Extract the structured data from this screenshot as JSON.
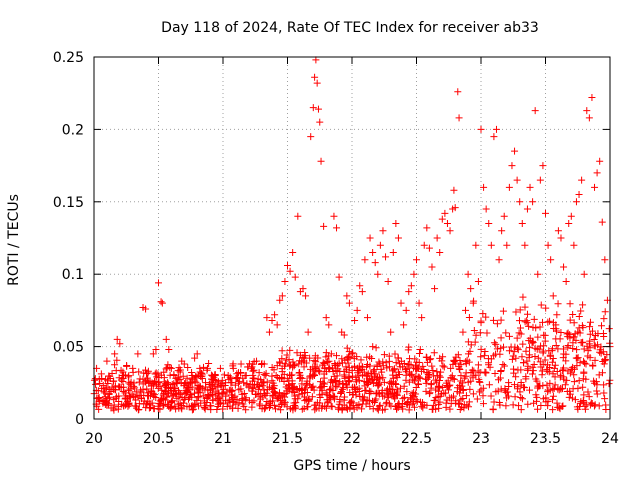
{
  "chart_data": {
    "type": "scatter",
    "title": "Day 118 of 2024, Rate Of TEC Index for receiver ab33",
    "xlabel": "GPS time / hours",
    "ylabel": "ROTI / TECUs",
    "xlim": [
      20,
      24
    ],
    "ylim": [
      0,
      0.25
    ],
    "x_ticks": [
      20,
      20.5,
      21,
      21.5,
      22,
      22.5,
      23,
      23.5,
      24
    ],
    "y_ticks": [
      0,
      0.05,
      0.1,
      0.15,
      0.2,
      0.25
    ],
    "x_tick_labels": [
      "20",
      "20.5",
      "21",
      "21.5",
      "22",
      "22.5",
      "23",
      "23.5",
      "24"
    ],
    "y_tick_labels": [
      "0",
      "0.05",
      "0.1",
      "0.15",
      "0.2",
      "0.25"
    ],
    "grid": true,
    "marker": "+",
    "color": "#ff0000",
    "series": [
      {
        "points": [
          [
            20.02,
            0.035
          ],
          [
            20.04,
            0.012
          ],
          [
            20.06,
            0.028
          ],
          [
            20.08,
            0.018
          ],
          [
            20.1,
            0.04
          ],
          [
            20.12,
            0.015
          ],
          [
            20.14,
            0.022
          ],
          [
            20.16,
            0.045
          ],
          [
            20.18,
            0.055
          ],
          [
            20.2,
            0.052
          ],
          [
            20.22,
            0.03
          ],
          [
            20.24,
            0.018
          ],
          [
            20.26,
            0.012
          ],
          [
            20.28,
            0.024
          ],
          [
            20.3,
            0.035
          ],
          [
            20.32,
            0.015
          ],
          [
            20.34,
            0.045
          ],
          [
            20.36,
            0.02
          ],
          [
            20.38,
            0.077
          ],
          [
            20.4,
            0.076
          ],
          [
            20.42,
            0.018
          ],
          [
            20.44,
            0.025
          ],
          [
            20.46,
            0.045
          ],
          [
            20.48,
            0.048
          ],
          [
            20.5,
            0.094
          ],
          [
            20.52,
            0.081
          ],
          [
            20.53,
            0.08
          ],
          [
            20.56,
            0.055
          ],
          [
            20.58,
            0.048
          ],
          [
            20.6,
            0.035
          ],
          [
            20.62,
            0.03
          ],
          [
            20.64,
            0.025
          ],
          [
            20.66,
            0.018
          ],
          [
            20.68,
            0.04
          ],
          [
            20.7,
            0.038
          ],
          [
            20.72,
            0.022
          ],
          [
            20.74,
            0.015
          ],
          [
            20.76,
            0.03
          ],
          [
            20.78,
            0.042
          ],
          [
            20.8,
            0.045
          ],
          [
            20.82,
            0.035
          ],
          [
            20.84,
            0.028
          ],
          [
            20.86,
            0.02
          ],
          [
            20.88,
            0.035
          ],
          [
            20.9,
            0.025
          ],
          [
            20.92,
            0.018
          ],
          [
            20.94,
            0.03
          ],
          [
            20.96,
            0.022
          ],
          [
            20.98,
            0.035
          ],
          [
            21.0,
            0.018
          ],
          [
            21.02,
            0.025
          ],
          [
            21.04,
            0.03
          ],
          [
            21.06,
            0.02
          ],
          [
            21.08,
            0.035
          ],
          [
            21.1,
            0.028
          ],
          [
            21.12,
            0.032
          ],
          [
            21.14,
            0.038
          ],
          [
            21.16,
            0.025
          ],
          [
            21.18,
            0.03
          ],
          [
            21.2,
            0.022
          ],
          [
            21.22,
            0.035
          ],
          [
            21.24,
            0.028
          ],
          [
            21.26,
            0.04
          ],
          [
            21.28,
            0.032
          ],
          [
            21.3,
            0.025
          ],
          [
            21.32,
            0.038
          ],
          [
            21.34,
            0.07
          ],
          [
            21.36,
            0.06
          ],
          [
            21.38,
            0.068
          ],
          [
            21.4,
            0.072
          ],
          [
            21.42,
            0.065
          ],
          [
            21.44,
            0.082
          ],
          [
            21.46,
            0.085
          ],
          [
            21.48,
            0.095
          ],
          [
            21.5,
            0.106
          ],
          [
            21.52,
            0.102
          ],
          [
            21.54,
            0.115
          ],
          [
            21.56,
            0.098
          ],
          [
            21.58,
            0.14
          ],
          [
            21.6,
            0.088
          ],
          [
            21.62,
            0.09
          ],
          [
            21.64,
            0.085
          ],
          [
            21.66,
            0.06
          ],
          [
            21.68,
            0.195
          ],
          [
            21.7,
            0.215
          ],
          [
            21.71,
            0.236
          ],
          [
            21.72,
            0.248
          ],
          [
            21.73,
            0.232
          ],
          [
            21.74,
            0.214
          ],
          [
            21.75,
            0.205
          ],
          [
            21.76,
            0.178
          ],
          [
            21.78,
            0.133
          ],
          [
            21.8,
            0.07
          ],
          [
            21.82,
            0.065
          ],
          [
            21.84,
            0.045
          ],
          [
            21.86,
            0.14
          ],
          [
            21.88,
            0.132
          ],
          [
            21.9,
            0.098
          ],
          [
            21.92,
            0.06
          ],
          [
            21.94,
            0.058
          ],
          [
            21.96,
            0.085
          ],
          [
            21.98,
            0.08
          ],
          [
            22.0,
            0.045
          ],
          [
            22.02,
            0.068
          ],
          [
            22.04,
            0.075
          ],
          [
            22.06,
            0.092
          ],
          [
            22.08,
            0.088
          ],
          [
            22.1,
            0.11
          ],
          [
            22.12,
            0.07
          ],
          [
            22.14,
            0.125
          ],
          [
            22.16,
            0.115
          ],
          [
            22.18,
            0.108
          ],
          [
            22.2,
            0.1
          ],
          [
            22.22,
            0.12
          ],
          [
            22.24,
            0.13
          ],
          [
            22.26,
            0.112
          ],
          [
            22.28,
            0.095
          ],
          [
            22.3,
            0.06
          ],
          [
            22.32,
            0.115
          ],
          [
            22.34,
            0.135
          ],
          [
            22.36,
            0.125
          ],
          [
            22.38,
            0.08
          ],
          [
            22.4,
            0.065
          ],
          [
            22.42,
            0.075
          ],
          [
            22.44,
            0.088
          ],
          [
            22.46,
            0.092
          ],
          [
            22.48,
            0.1
          ],
          [
            22.5,
            0.11
          ],
          [
            22.52,
            0.08
          ],
          [
            22.54,
            0.07
          ],
          [
            22.56,
            0.12
          ],
          [
            22.58,
            0.132
          ],
          [
            22.6,
            0.118
          ],
          [
            22.62,
            0.105
          ],
          [
            22.64,
            0.09
          ],
          [
            22.66,
            0.125
          ],
          [
            22.68,
            0.115
          ],
          [
            22.7,
            0.138
          ],
          [
            22.72,
            0.142
          ],
          [
            22.74,
            0.135
          ],
          [
            22.76,
            0.13
          ],
          [
            22.78,
            0.145
          ],
          [
            22.79,
            0.158
          ],
          [
            22.8,
            0.146
          ],
          [
            22.82,
            0.226
          ],
          [
            22.83,
            0.208
          ],
          [
            22.86,
            0.06
          ],
          [
            22.88,
            0.075
          ],
          [
            22.9,
            0.1
          ],
          [
            22.92,
            0.09
          ],
          [
            22.94,
            0.08
          ],
          [
            22.96,
            0.12
          ],
          [
            22.98,
            0.095
          ],
          [
            23.0,
            0.2
          ],
          [
            23.02,
            0.16
          ],
          [
            23.04,
            0.145
          ],
          [
            23.06,
            0.135
          ],
          [
            23.08,
            0.12
          ],
          [
            23.1,
            0.195
          ],
          [
            23.12,
            0.2
          ],
          [
            23.14,
            0.11
          ],
          [
            23.16,
            0.13
          ],
          [
            23.18,
            0.14
          ],
          [
            23.2,
            0.12
          ],
          [
            23.22,
            0.16
          ],
          [
            23.24,
            0.175
          ],
          [
            23.26,
            0.185
          ],
          [
            23.28,
            0.165
          ],
          [
            23.3,
            0.15
          ],
          [
            23.32,
            0.135
          ],
          [
            23.34,
            0.12
          ],
          [
            23.36,
            0.145
          ],
          [
            23.38,
            0.16
          ],
          [
            23.4,
            0.15
          ],
          [
            23.42,
            0.213
          ],
          [
            23.44,
            0.1
          ],
          [
            23.46,
            0.165
          ],
          [
            23.48,
            0.175
          ],
          [
            23.5,
            0.142
          ],
          [
            23.52,
            0.12
          ],
          [
            23.54,
            0.11
          ],
          [
            23.56,
            0.085
          ],
          [
            23.58,
            0.065
          ],
          [
            23.6,
            0.13
          ],
          [
            23.62,
            0.125
          ],
          [
            23.64,
            0.105
          ],
          [
            23.66,
            0.095
          ],
          [
            23.68,
            0.135
          ],
          [
            23.7,
            0.14
          ],
          [
            23.72,
            0.12
          ],
          [
            23.74,
            0.15
          ],
          [
            23.76,
            0.155
          ],
          [
            23.78,
            0.165
          ],
          [
            23.8,
            0.1
          ],
          [
            23.82,
            0.213
          ],
          [
            23.84,
            0.208
          ],
          [
            23.86,
            0.222
          ],
          [
            23.88,
            0.16
          ],
          [
            23.9,
            0.17
          ],
          [
            23.92,
            0.178
          ],
          [
            23.94,
            0.136
          ],
          [
            23.96,
            0.11
          ],
          [
            23.98,
            0.082
          ],
          [
            24.0,
            0.05
          ]
        ]
      }
    ]
  }
}
